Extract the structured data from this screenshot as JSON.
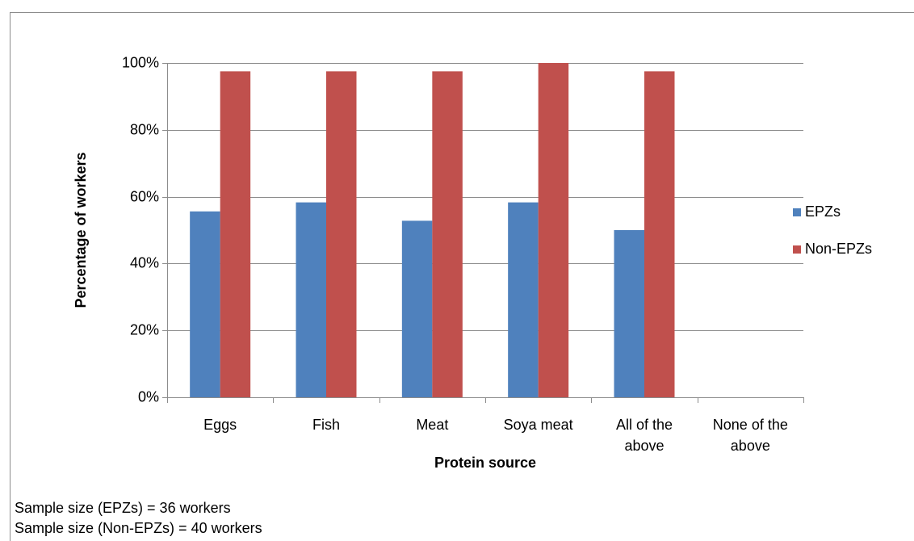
{
  "chart_data": {
    "type": "bar",
    "x_label": "Protein source",
    "y_label": "Percentage of workers",
    "categories": [
      "Eggs",
      "Fish",
      "Meat",
      "Soya meat",
      "All of the above",
      "None of the above"
    ],
    "series": [
      {
        "name": "EPZs",
        "color": "#4f81bd",
        "values": [
          55.6,
          58.3,
          52.8,
          58.3,
          50,
          0
        ]
      },
      {
        "name": "Non-EPZs",
        "color": "#c0504d",
        "values": [
          97.5,
          97.5,
          97.5,
          100,
          97.5,
          0
        ]
      }
    ],
    "ylim": [
      0,
      100
    ],
    "yticks": [
      {
        "value": 0,
        "label": "0%"
      },
      {
        "value": 20,
        "label": "20%"
      },
      {
        "value": 40,
        "label": "40%"
      },
      {
        "value": 60,
        "label": "60%"
      },
      {
        "value": 80,
        "label": "80%"
      },
      {
        "value": 100,
        "label": "100%"
      }
    ],
    "grid": true,
    "legend": "right",
    "notes": [
      "Sample size (EPZs) = 36 workers",
      "Sample size (Non-EPZs) = 40 workers"
    ]
  }
}
